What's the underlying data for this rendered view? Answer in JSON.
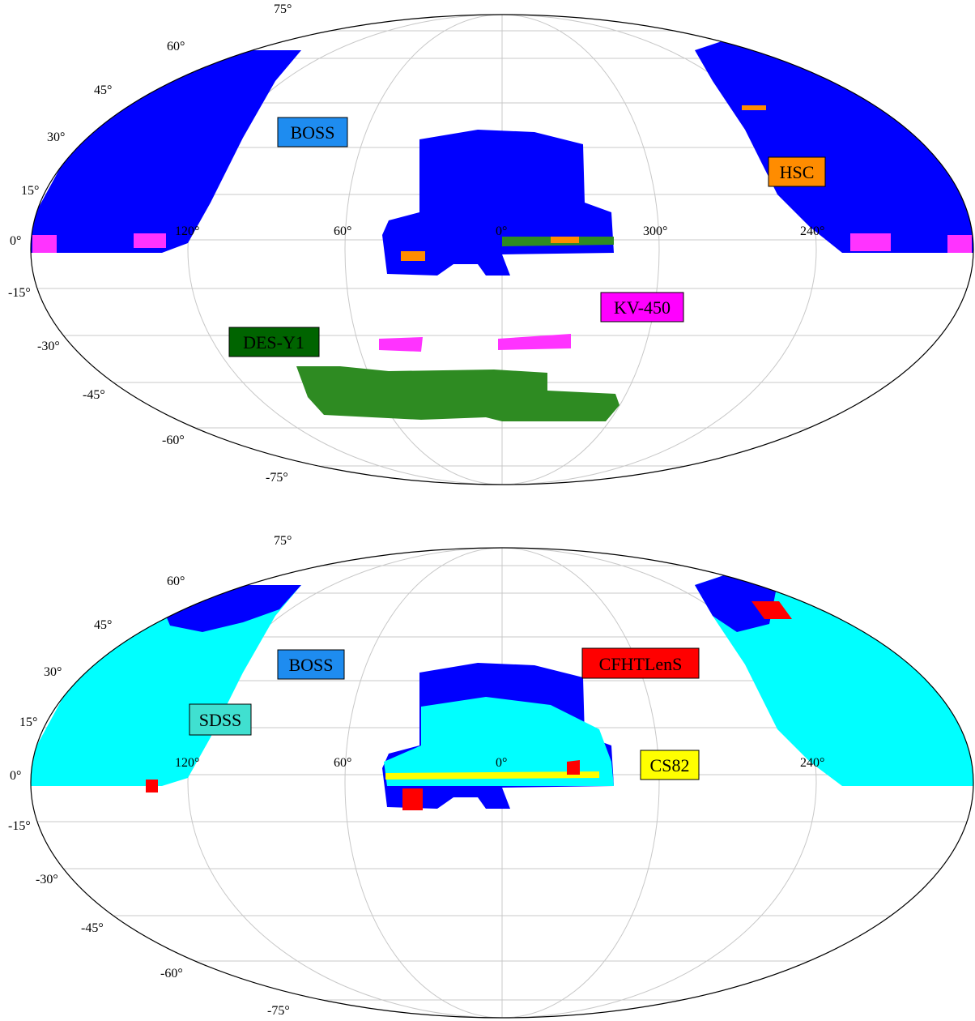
{
  "chart_data": [
    {
      "type": "map",
      "projection": "mollweide",
      "lat_ticks": [
        "75°",
        "60°",
        "45°",
        "30°",
        "15°",
        "0°",
        "-15°",
        "-30°",
        "-45°",
        "-60°",
        "-75°"
      ],
      "lon_ticks": [
        "120°",
        "60°",
        "0°",
        "300°",
        "240°"
      ],
      "surveys": [
        {
          "name": "BOSS",
          "color": "#1e8cf0"
        },
        {
          "name": "HSC",
          "color": "#ff8c00"
        },
        {
          "name": "KV-450",
          "color": "#ff00ff"
        },
        {
          "name": "DES-Y1",
          "color": "#006400"
        }
      ],
      "footprint_colors": {
        "BOSS": "#0000ff",
        "HSC": "#ff8c00",
        "KV-450": "#ff00ff",
        "DES-Y1": "#2e8b22"
      }
    },
    {
      "type": "map",
      "projection": "mollweide",
      "lat_ticks": [
        "75°",
        "60°",
        "45°",
        "30°",
        "15°",
        "0°",
        "-15°",
        "-30°",
        "-45°",
        "-60°",
        "-75°"
      ],
      "lon_ticks": [
        "120°",
        "60°",
        "0°",
        "240°"
      ],
      "surveys": [
        {
          "name": "BOSS",
          "color": "#1e8cf0"
        },
        {
          "name": "CFHTLenS",
          "color": "#ff0000"
        },
        {
          "name": "SDSS",
          "color": "#40e0d0"
        },
        {
          "name": "CS82",
          "color": "#ffff00"
        }
      ],
      "footprint_colors": {
        "BOSS": "#0000ff",
        "SDSS": "#00ffff",
        "CFHTLenS": "#ff0000",
        "CS82": "#ffff00"
      }
    }
  ]
}
